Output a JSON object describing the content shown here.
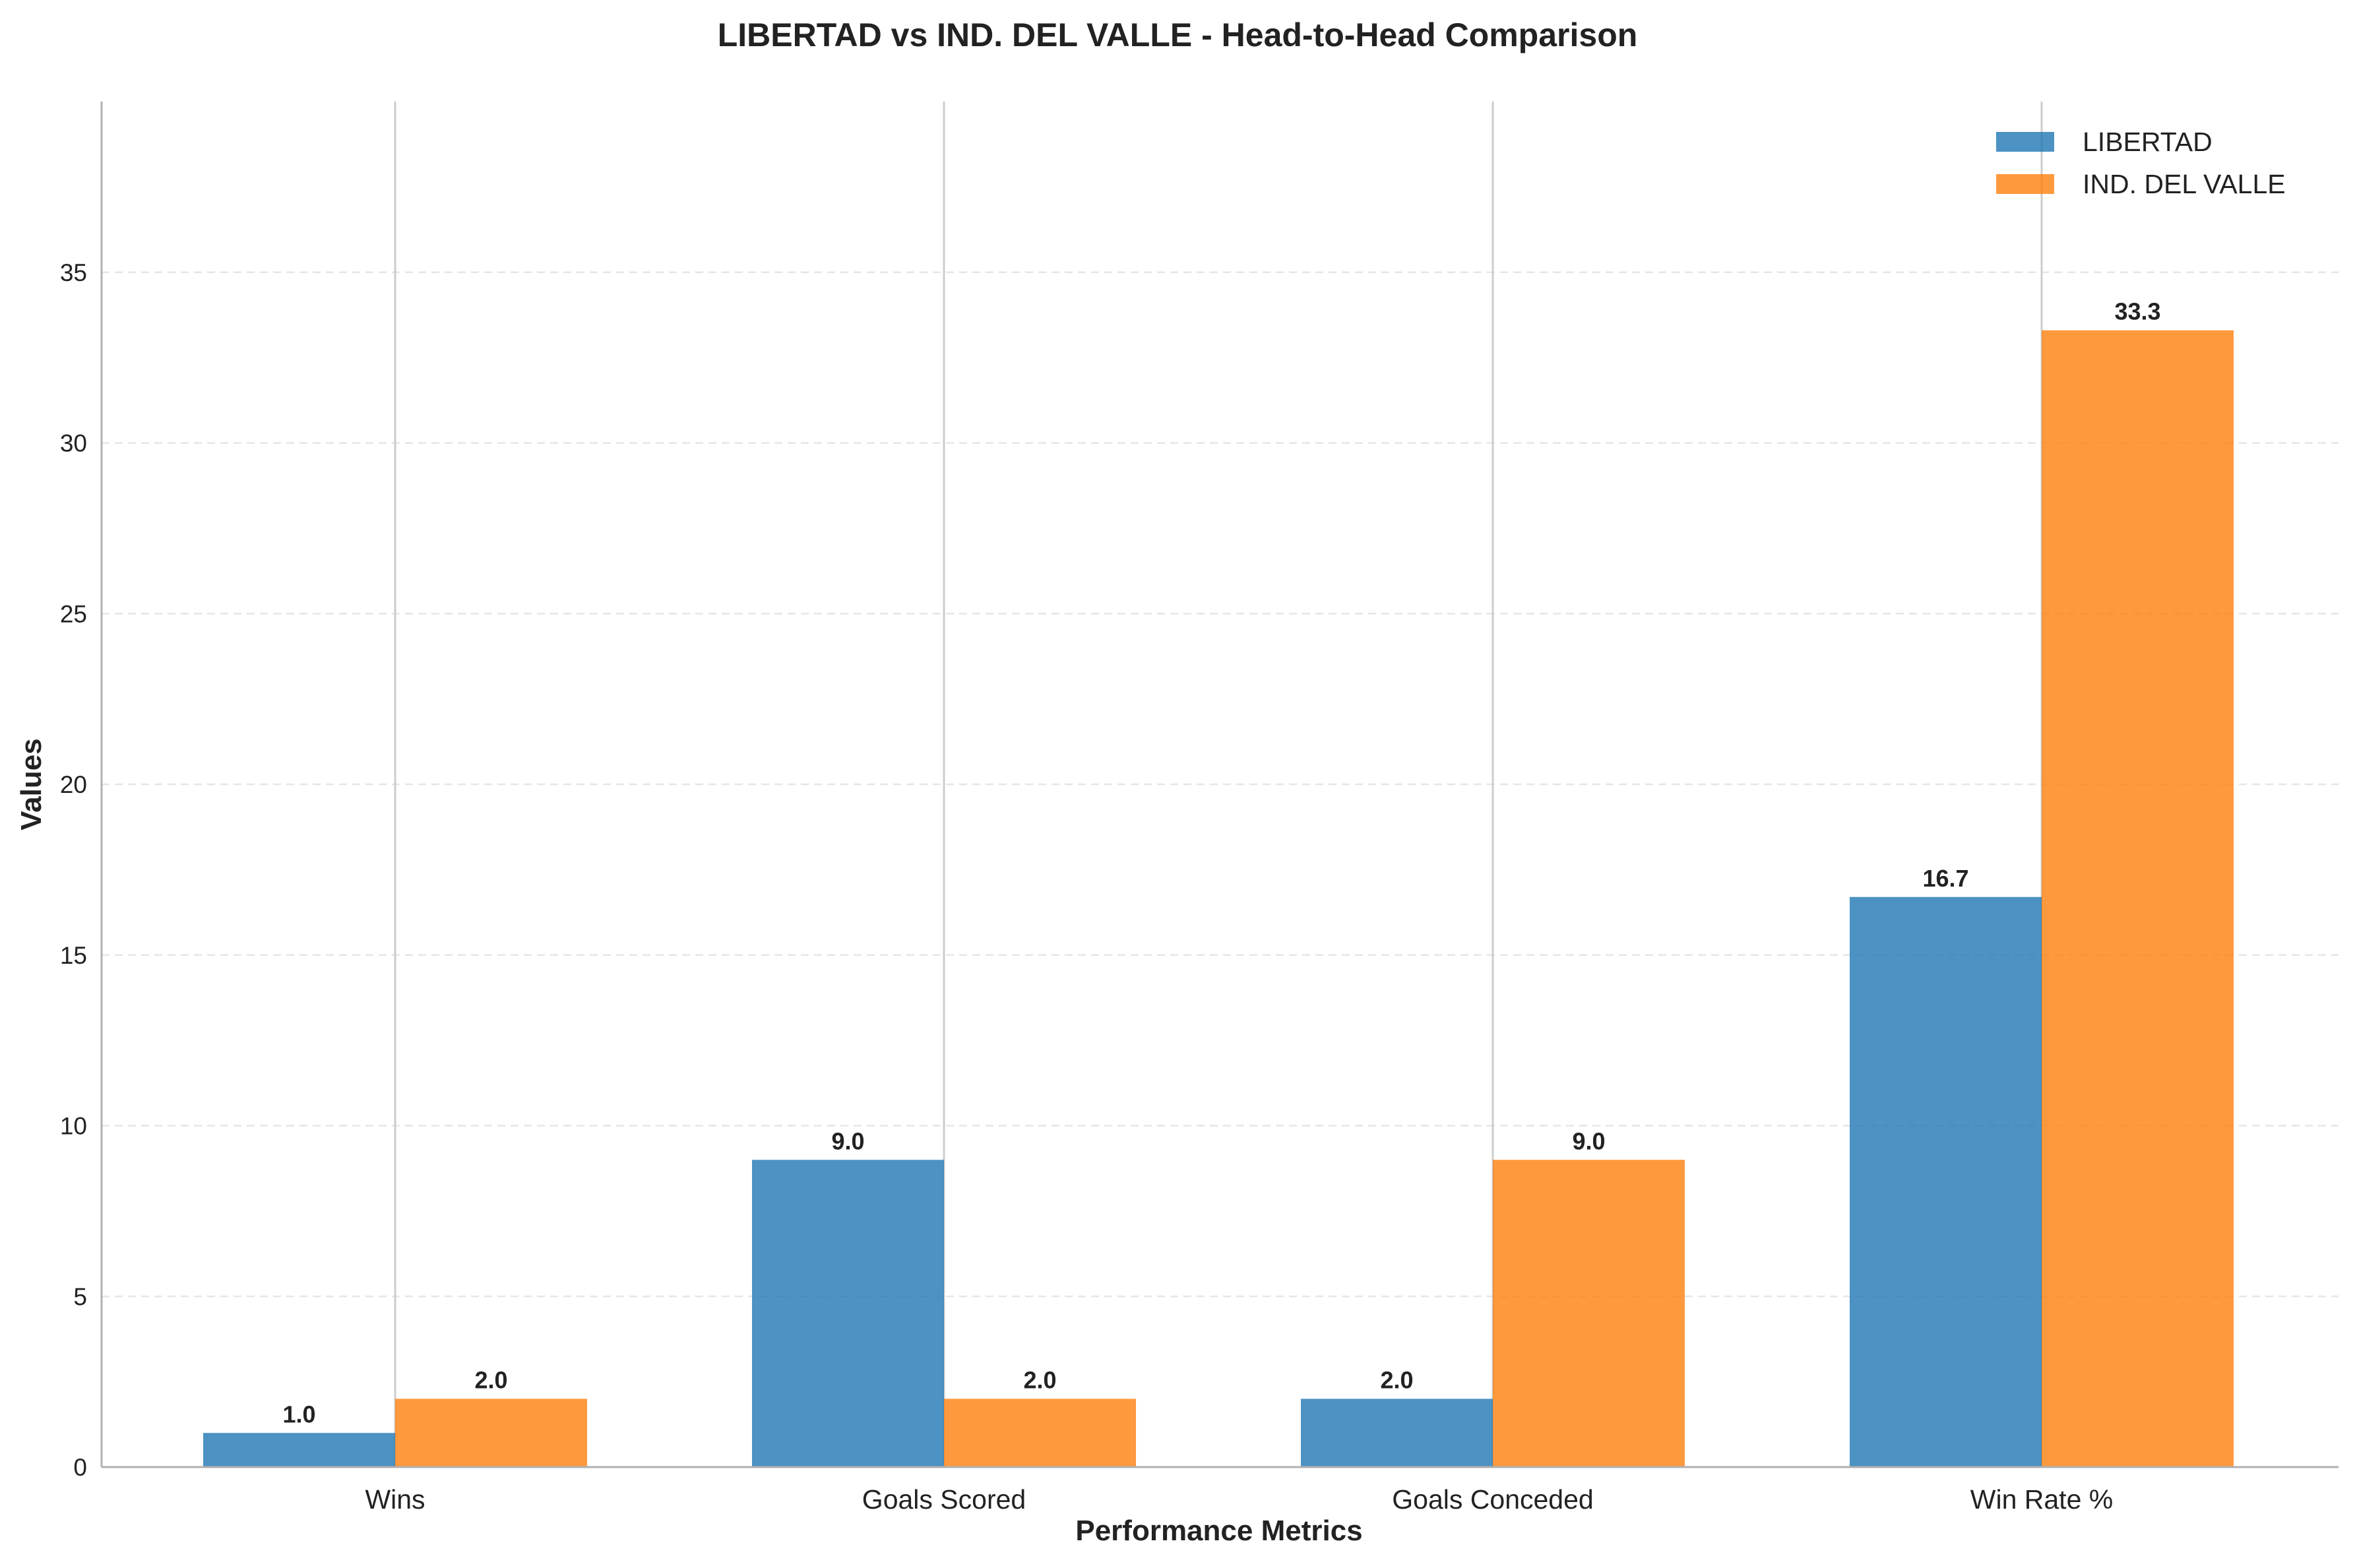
{
  "chart_data": {
    "type": "bar",
    "title": "LIBERTAD vs IND. DEL VALLE - Head-to-Head Comparison",
    "xlabel": "Performance Metrics",
    "ylabel": "Values",
    "categories": [
      "Wins",
      "Goals Scored",
      "Goals Conceded",
      "Win Rate %"
    ],
    "series": [
      {
        "name": "LIBERTAD",
        "color": "#1f77b4",
        "values": [
          1.0,
          9.0,
          2.0,
          16.7
        ],
        "labels": [
          "1.0",
          "9.0",
          "2.0",
          "16.7"
        ]
      },
      {
        "name": "IND. DEL VALLE",
        "color": "#ff7f0e",
        "values": [
          2.0,
          2.0,
          9.0,
          33.3
        ],
        "labels": [
          "2.0",
          "2.0",
          "9.0",
          "33.3"
        ]
      }
    ],
    "ylim": [
      0,
      40
    ],
    "yticks": [
      0,
      5,
      10,
      15,
      20,
      25,
      30,
      35
    ],
    "ytick_labels": [
      "0",
      "5",
      "10",
      "15",
      "20",
      "25",
      "30",
      "35"
    ],
    "grid": true,
    "legend_position": "top-right"
  }
}
